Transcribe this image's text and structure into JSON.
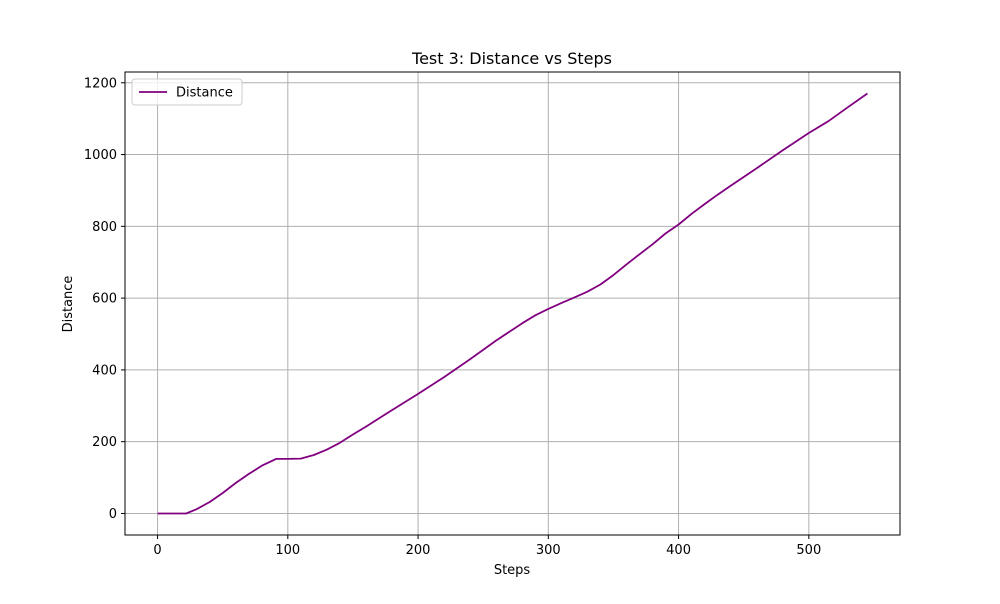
{
  "chart_data": {
    "type": "line",
    "title": "Test 3: Distance vs Steps",
    "xlabel": "Steps",
    "ylabel": "Distance",
    "xlim": [
      -25,
      570
    ],
    "ylim": [
      -60,
      1230
    ],
    "xticks": [
      0,
      100,
      200,
      300,
      400,
      500
    ],
    "yticks": [
      0,
      200,
      400,
      600,
      800,
      1000,
      1200
    ],
    "grid": true,
    "legend_position": "top-left",
    "series": [
      {
        "name": "Distance",
        "color": "#800080",
        "x": [
          0,
          10,
          22,
          30,
          40,
          50,
          60,
          70,
          80,
          91,
          100,
          110,
          120,
          130,
          140,
          150,
          160,
          180,
          200,
          220,
          240,
          260,
          280,
          290,
          300,
          310,
          320,
          330,
          340,
          350,
          360,
          370,
          380,
          390,
          400,
          410,
          420,
          430,
          440,
          460,
          480,
          500,
          515,
          530,
          545
        ],
        "y": [
          0,
          0,
          0,
          12,
          32,
          57,
          85,
          110,
          133,
          152,
          152,
          153,
          163,
          178,
          197,
          220,
          242,
          288,
          333,
          380,
          430,
          482,
          530,
          552,
          570,
          586,
          602,
          618,
          638,
          664,
          694,
          722,
          750,
          780,
          805,
          835,
          862,
          888,
          913,
          962,
          1012,
          1060,
          1093,
          1132,
          1170
        ]
      }
    ]
  }
}
